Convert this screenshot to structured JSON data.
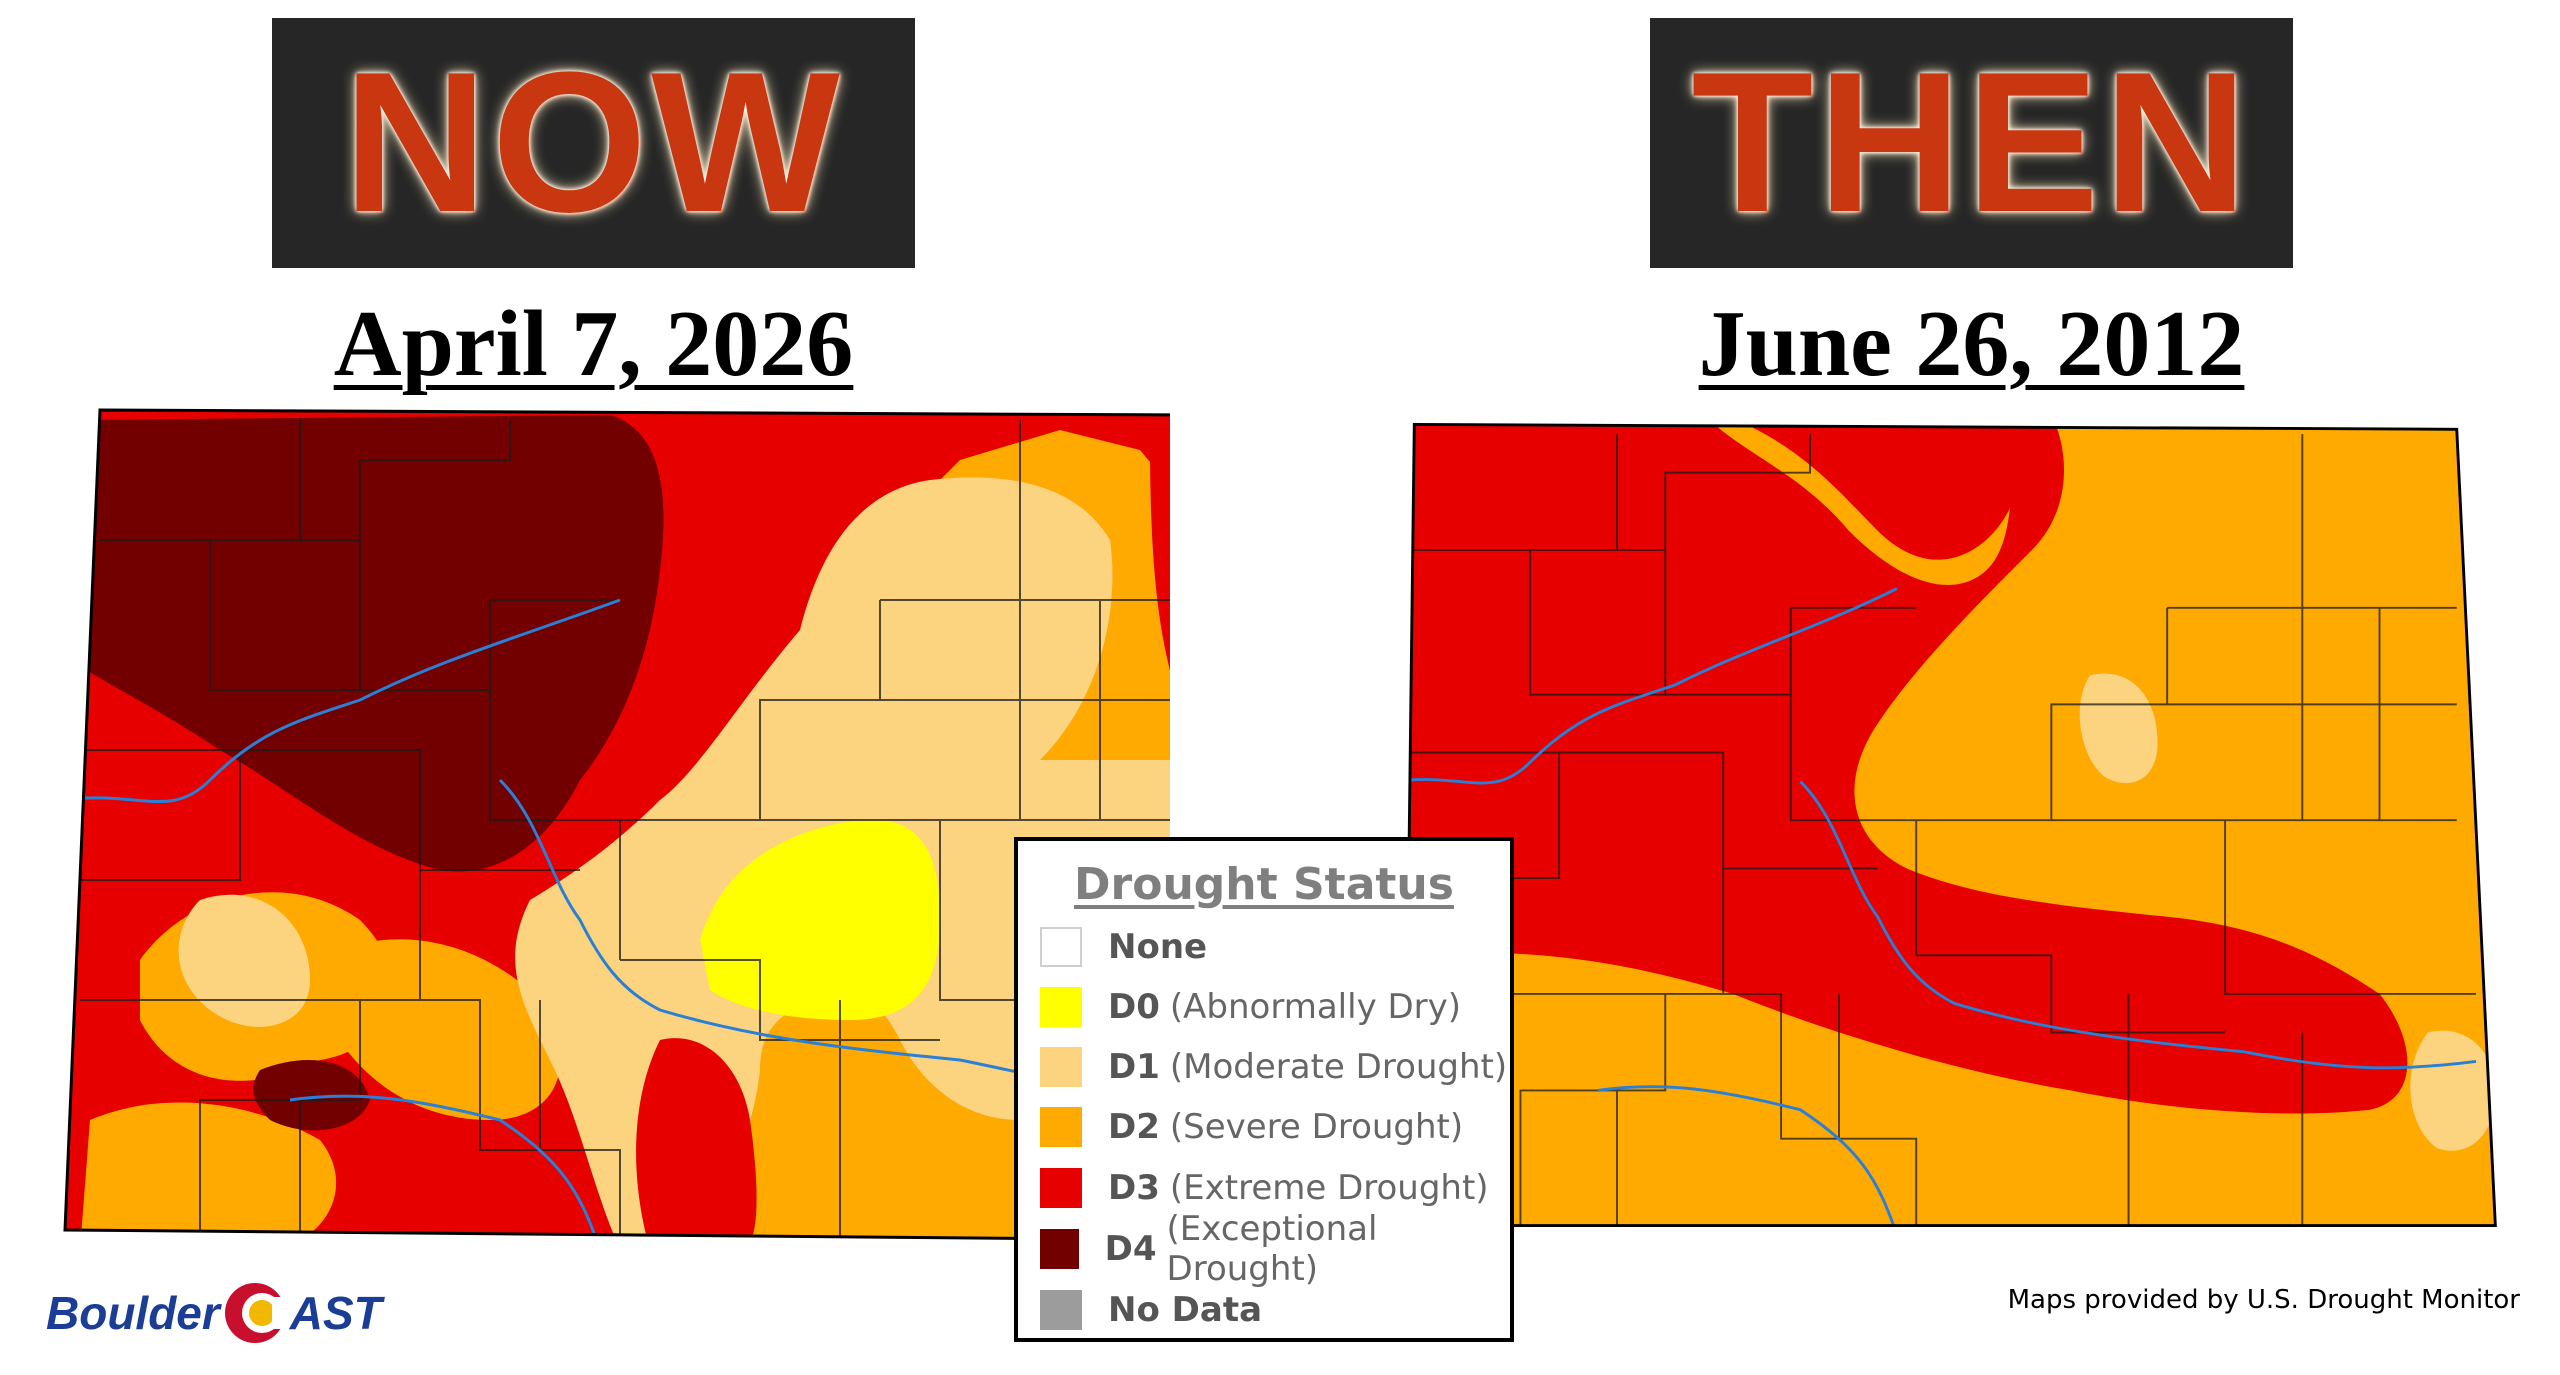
{
  "panels": {
    "left": {
      "banner": "NOW",
      "date": "April 7, 2026"
    },
    "right": {
      "banner": "THEN",
      "date": "June 26, 2012"
    }
  },
  "legend": {
    "title": "Drought Status",
    "items": [
      {
        "code": "None",
        "desc": "",
        "color": "#ffffff"
      },
      {
        "code": "D0",
        "desc": "(Abnormally Dry)",
        "color": "#ffff00"
      },
      {
        "code": "D1",
        "desc": "(Moderate Drought)",
        "color": "#fcd37f"
      },
      {
        "code": "D2",
        "desc": "(Severe Drought)",
        "color": "#ffaa00"
      },
      {
        "code": "D3",
        "desc": "(Extreme Drought)",
        "color": "#e60000"
      },
      {
        "code": "D4",
        "desc": "(Exceptional Drought)",
        "color": "#730000"
      },
      {
        "code": "No Data",
        "desc": "",
        "color": "#9c9c9c"
      }
    ]
  },
  "logo": {
    "text_before": "Boulder",
    "text_after": "AST"
  },
  "credit": "Maps provided by U.S. Drought Monitor"
}
